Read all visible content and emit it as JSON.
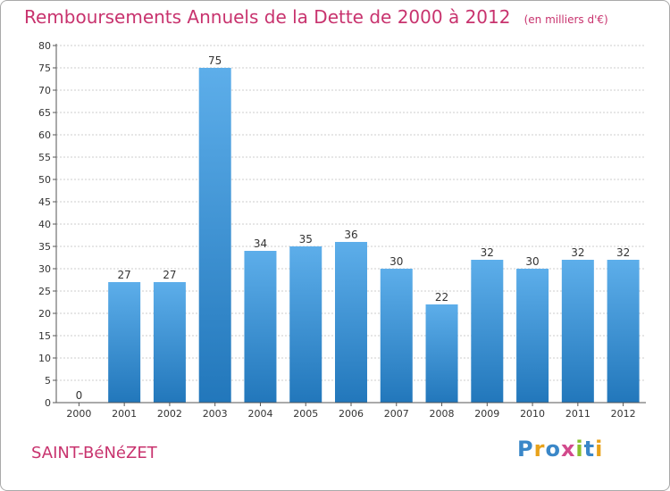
{
  "header": {
    "title": "Remboursements Annuels de la Dette de 2000 à 2012",
    "unit": "(en milliers d'€)"
  },
  "footer": {
    "commune": "SAINT-BéNéZET",
    "brand": "Proxiti"
  },
  "colors": {
    "title": "#c8336e",
    "bar_top": "#5daeea",
    "bar_bottom": "#2277bb",
    "grid": "#cccccc",
    "axis": "#555555",
    "brand_letters": [
      "#3a87c8",
      "#e8a21b",
      "#3a87c8",
      "#d24a8c",
      "#8abf2d",
      "#3a87c8",
      "#e8a21b"
    ]
  },
  "chart_data": {
    "type": "bar",
    "categories": [
      "2000",
      "2001",
      "2002",
      "2003",
      "2004",
      "2005",
      "2006",
      "2007",
      "2008",
      "2009",
      "2010",
      "2011",
      "2012"
    ],
    "values": [
      0,
      27,
      27,
      75,
      34,
      35,
      36,
      30,
      22,
      32,
      30,
      32,
      32
    ],
    "title": "Remboursements Annuels de la Dette de 2000 à 2012",
    "xlabel": "",
    "ylabel": "",
    "ylim": [
      0,
      80
    ],
    "yticks": [
      0,
      5,
      10,
      15,
      20,
      25,
      30,
      35,
      40,
      45,
      50,
      55,
      60,
      65,
      70,
      75,
      80
    ],
    "grid": true,
    "data_labels": true
  }
}
